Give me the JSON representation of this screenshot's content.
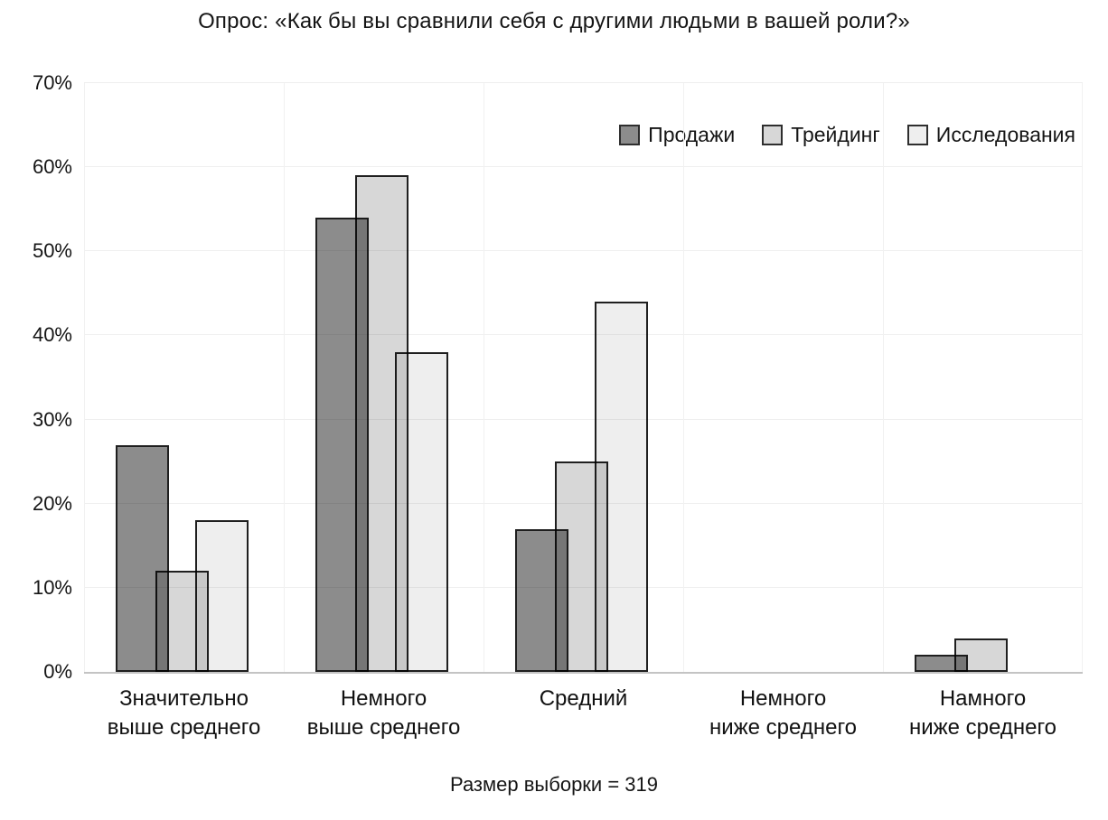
{
  "title": "Опрос: «Как бы вы сравнили себя с другими людьми в вашей роли?»",
  "footnote": "Размер выборки = 319",
  "chart_data": {
    "type": "bar",
    "title": "Опрос: «Как бы вы сравнили себя с другими людьми в вашей роли?»",
    "categories": [
      "Значительно\nвыше среднего",
      "Немного\nвыше среднего",
      "Средний",
      "Немного\nниже среднего",
      "Намного\nниже среднего"
    ],
    "series": [
      {
        "name": "Продажи",
        "color": "#8c8c8c",
        "values": [
          27,
          54,
          17,
          0,
          2
        ]
      },
      {
        "name": "Трейдинг",
        "color": "#d7d7d7",
        "values": [
          12,
          59,
          25,
          0,
          4
        ]
      },
      {
        "name": "Исследования",
        "color": "#eeeeee",
        "values": [
          18,
          38,
          44,
          0,
          0
        ]
      }
    ],
    "unit": "%",
    "ylim": [
      0,
      70
    ],
    "ytick_step": 10,
    "ytick_labels": [
      "0%",
      "10%",
      "20%",
      "30%",
      "40%",
      "50%",
      "60%",
      "70%"
    ],
    "grid": true,
    "legend_position": "top-right",
    "bar_border_color": "#1f1f1f",
    "bars_overlap": true,
    "footnote": "Размер выборки = 319"
  }
}
